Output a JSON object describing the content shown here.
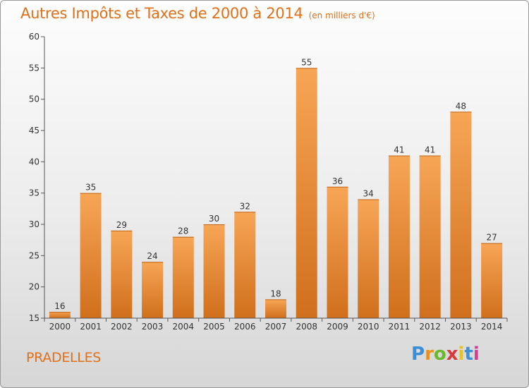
{
  "header": {
    "title": "Autres Impôts et Taxes de 2000 à 2014",
    "unit": "(en milliers d'€)"
  },
  "footer": {
    "city": "PRADELLES",
    "logo": "Proxiti"
  },
  "colors": {
    "title": "#e0701a",
    "bar_light": "#f7a656",
    "bar_dark": "#d06f1c",
    "axis": "#555555"
  },
  "chart_data": {
    "type": "bar",
    "categories": [
      "2000",
      "2001",
      "2002",
      "2003",
      "2004",
      "2005",
      "2006",
      "2007",
      "2008",
      "2009",
      "2010",
      "2011",
      "2012",
      "2013",
      "2014"
    ],
    "values": [
      16,
      35,
      29,
      24,
      28,
      30,
      32,
      18,
      55,
      36,
      34,
      41,
      41,
      48,
      27
    ],
    "title": "Autres Impôts et Taxes de 2000 à 2014",
    "xlabel": "",
    "ylabel": "",
    "ylim": [
      15,
      60
    ],
    "yticks": [
      15,
      20,
      25,
      30,
      35,
      40,
      45,
      50,
      55,
      60
    ],
    "grid": false,
    "data_labels": true
  }
}
